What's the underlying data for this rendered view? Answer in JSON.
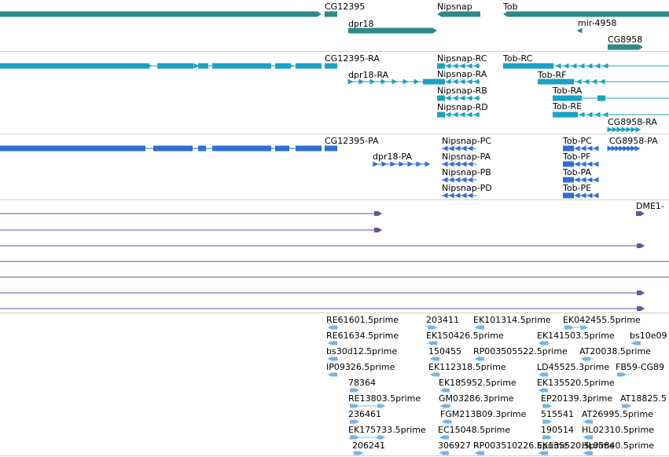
{
  "colors": {
    "gene": "#2e8a88",
    "transcript": "#1aa2c4",
    "protein": "#2e6fd3",
    "alignment": "#6e4fa3",
    "est": "#7ab4dc",
    "separator": "#cfcfcf"
  },
  "tracks": {
    "gene_labels": [
      "CG12395",
      "dpr18",
      "Nipsnap",
      "Tob",
      "mir-4958",
      "CG8958"
    ],
    "transcript_labels": [
      "CG12395-RA",
      "dpr18-RA",
      "Nipsnap-RC",
      "Nipsnap-RA",
      "Nipsnap-RB",
      "Nipsnap-RD",
      "Tob-RC",
      "Tob-RF",
      "Tob-RA",
      "Tob-RE",
      "CG8958-RA"
    ],
    "protein_labels": [
      "CG12395-PA",
      "dpr18-PA",
      "Nipsnap-PC",
      "Nipsnap-PA",
      "Nipsnap-PB",
      "Nipsnap-PD",
      "Tob-PC",
      "Tob-PF",
      "Tob-PA",
      "Tob-PE",
      "CG8958-PA"
    ],
    "alignment_labels": [
      "DME1-"
    ],
    "est_labels": [
      "RE61601.5prime",
      "203411",
      "EK101314.5prime",
      "EK042455.5prime",
      "RE61634.5prime",
      "EK150426.5prime",
      "EK141503.5prime",
      "bs10e09",
      "bs30d12.5prime",
      "150455",
      "RP003505522.5prime",
      "AT20038.5prime",
      "IP09326.5prime",
      "EK112318.5prime",
      "LD45525.3prime",
      "FB59-CG89",
      "78364",
      "EK185952.5prime",
      "EK135520.5prime",
      "RE13803.5prime",
      "GM03286.3prime",
      "EP20139.3prime",
      "AT18825.5",
      "236461",
      "FGM213B09.3prime",
      "515541",
      "AT26995.5prime",
      "EK175733.5prime",
      "EC15048.5prime",
      "190514",
      "HL02310.5prime",
      "206241",
      "306927",
      "RP003510226.5prime",
      "EK135520.5prime",
      "HL05840.5prime"
    ]
  }
}
